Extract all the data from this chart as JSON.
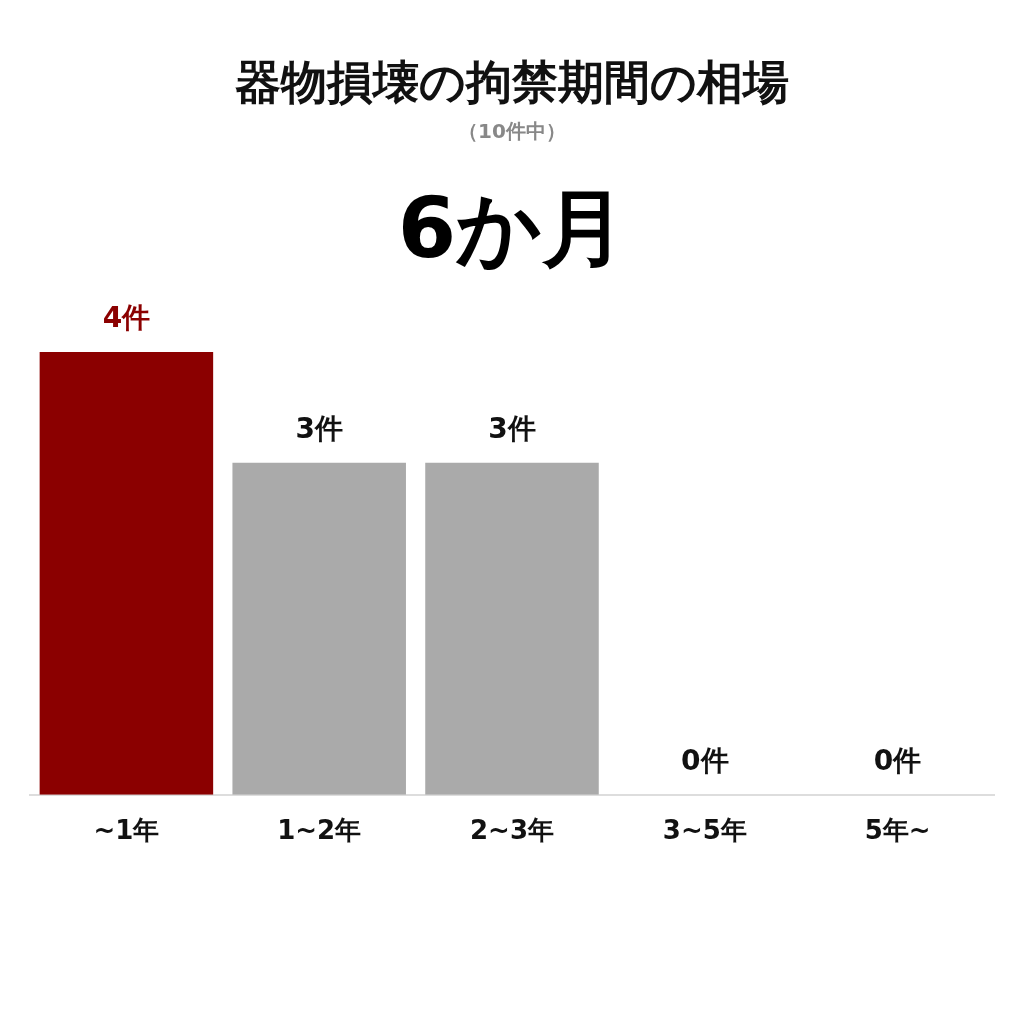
{
  "chart_data": {
    "type": "bar",
    "title": "器物損壊の拘禁期間の相場",
    "subtitle": "（10件中）",
    "annotations": [
      "6か月"
    ],
    "categories": [
      "~1年",
      "1~2年",
      "2~3年",
      "3~5年",
      "5年~"
    ],
    "values": [
      4,
      3,
      3,
      0,
      0
    ],
    "colors": [
      "#8b0000",
      "#aaaaaa",
      "#aaaaaa",
      "#aaaaaa",
      "#aaaaaa"
    ],
    "value_labels": [
      "4件",
      "3件",
      "3件",
      "0件",
      "0件"
    ],
    "legend": false,
    "grid": false
  }
}
